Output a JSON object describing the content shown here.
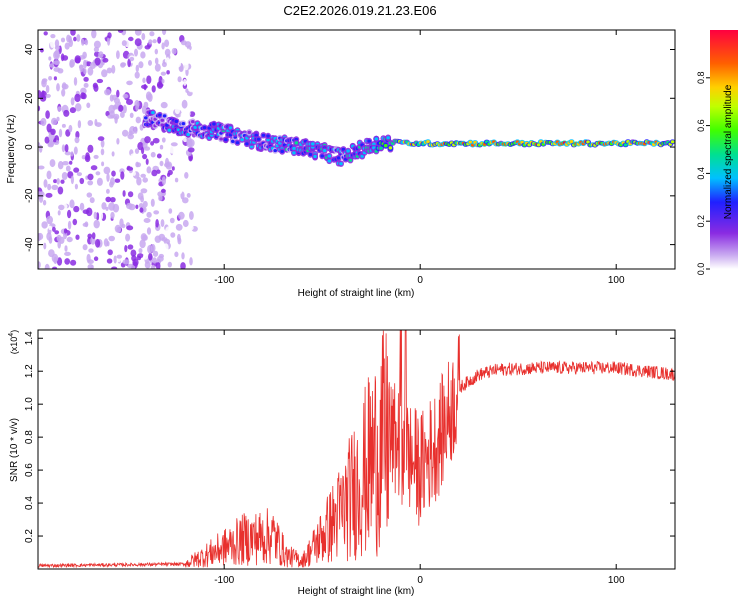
{
  "title": "C2E2.2026.019.21.23.E06",
  "chart_data": [
    {
      "type": "heatmap",
      "name": "spectrogram",
      "xlabel": "Height of straight line (km)",
      "ylabel": "Frequency (Hz)",
      "xlim": [
        -195,
        130
      ],
      "ylim": [
        -50,
        48
      ],
      "x_ticks": [
        {
          "value": -100,
          "label": "-100"
        },
        {
          "value": 0,
          "label": "0"
        },
        {
          "value": 100,
          "label": "100"
        }
      ],
      "y_ticks": [
        {
          "value": 40,
          "label": "40"
        },
        {
          "value": 20,
          "label": "20"
        },
        {
          "value": 0,
          "label": "0"
        },
        {
          "value": -20,
          "label": "-20"
        },
        {
          "value": -40,
          "label": "-40"
        }
      ],
      "colorbar": {
        "label": "Normalized spectral amplitude",
        "range": [
          0,
          1
        ],
        "ticks": [
          {
            "value": 0.0,
            "label": "0.0"
          },
          {
            "value": 0.2,
            "label": "0.2"
          },
          {
            "value": 0.4,
            "label": "0.4"
          },
          {
            "value": 0.6,
            "label": "0.6"
          },
          {
            "value": 0.8,
            "label": "0.8"
          }
        ]
      },
      "ridge": {
        "x": [
          -140,
          -120,
          -100,
          -80,
          -60,
          -40,
          -20,
          0,
          20,
          60,
          100,
          130
        ],
        "frequency": [
          12,
          8,
          6,
          2,
          0,
          -4,
          2,
          1.5,
          1.5,
          1.5,
          1.5,
          1.5
        ],
        "amplitude": [
          0.35,
          0.4,
          0.45,
          0.4,
          0.5,
          0.45,
          0.6,
          0.9,
          0.85,
          0.95,
          0.9,
          0.85
        ]
      }
    },
    {
      "type": "line",
      "name": "snr",
      "xlabel": "Height of straight line (km)",
      "ylabel": "SNR (10 * v/v)",
      "y_scale_label": "(x10",
      "y_scale_exp": "4",
      "y_scale_close": ")",
      "xlim": [
        -195,
        130
      ],
      "ylim": [
        0,
        1.45
      ],
      "color": "#e8302d",
      "x_ticks": [
        {
          "value": -100,
          "label": "-100"
        },
        {
          "value": 0,
          "label": "0"
        },
        {
          "value": 100,
          "label": "100"
        }
      ],
      "y_ticks": [
        {
          "value": 0.2,
          "label": "0.2"
        },
        {
          "value": 0.4,
          "label": "0.4"
        },
        {
          "value": 0.6,
          "label": "0.6"
        },
        {
          "value": 0.8,
          "label": "0.8"
        },
        {
          "value": 1.0,
          "label": "1.0"
        },
        {
          "value": 1.2,
          "label": "1.2"
        },
        {
          "value": 1.4,
          "label": "1.4"
        }
      ],
      "envelope": {
        "x": [
          -195,
          -120,
          -110,
          -90,
          -75,
          -68,
          -60,
          -50,
          -40,
          -30,
          -20,
          -15,
          -10,
          0,
          10,
          20,
          30,
          40,
          60,
          100,
          130
        ],
        "y": [
          0.02,
          0.03,
          0.08,
          0.18,
          0.2,
          0.08,
          0.05,
          0.2,
          0.35,
          0.55,
          0.75,
          0.8,
          0.75,
          0.6,
          0.8,
          1.1,
          1.18,
          1.21,
          1.22,
          1.22,
          1.18
        ]
      }
    }
  ]
}
